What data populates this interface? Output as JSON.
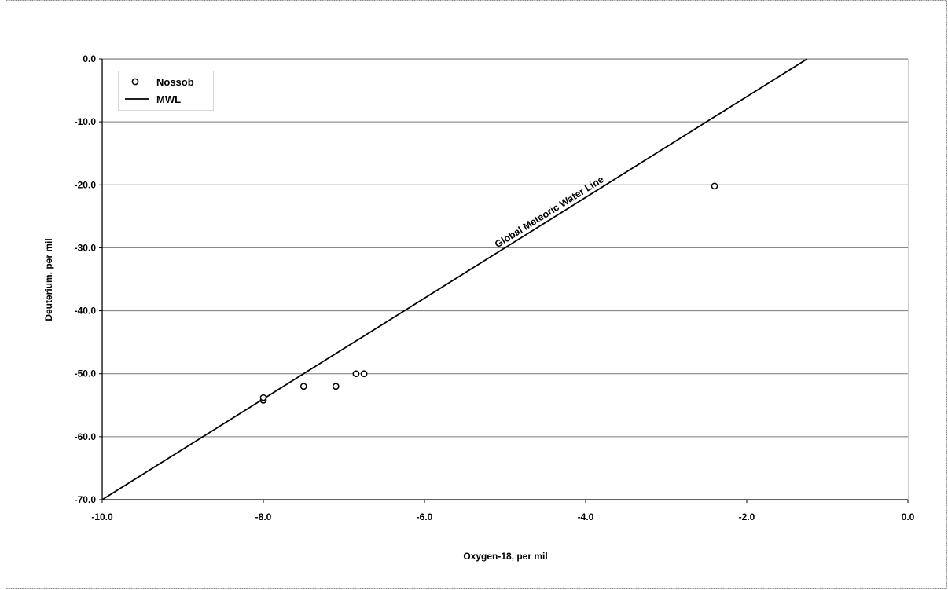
{
  "chart_data": {
    "type": "scatter",
    "title": "",
    "xlabel": "Oxygen-18, per mil",
    "ylabel": "Deuterium, per mil",
    "xlim": [
      -10.0,
      0.0
    ],
    "ylim": [
      -70.0,
      0.0
    ],
    "x_ticks": [
      -10.0,
      -8.0,
      -6.0,
      -4.0,
      -2.0,
      0.0
    ],
    "y_ticks": [
      0.0,
      -10.0,
      -20.0,
      -30.0,
      -40.0,
      -50.0,
      -60.0,
      -70.0
    ],
    "x_tick_labels": [
      "-10.0",
      "-8.0",
      "-6.0",
      "-4.0",
      "-2.0",
      "0.0"
    ],
    "y_tick_labels": [
      "0.0",
      "-10.0",
      "-20.0",
      "-30.0",
      "-40.0",
      "-50.0",
      "-60.0",
      "-70.0"
    ],
    "grid": "horizontal",
    "legend_position": "top-left",
    "series": [
      {
        "name": "Nossob",
        "kind": "scatter",
        "marker": "open-circle",
        "points": [
          {
            "x": -8.0,
            "y": -54.2
          },
          {
            "x": -8.0,
            "y": -53.8
          },
          {
            "x": -7.5,
            "y": -52.0
          },
          {
            "x": -7.1,
            "y": -52.0
          },
          {
            "x": -6.85,
            "y": -50.0
          },
          {
            "x": -6.75,
            "y": -50.0
          },
          {
            "x": -2.4,
            "y": -20.2
          }
        ]
      },
      {
        "name": "MWL",
        "kind": "line",
        "slope": 8,
        "intercept": 10,
        "points": [
          {
            "x": -10.0,
            "y": -70.0
          },
          {
            "x": -1.25,
            "y": 0.0
          }
        ]
      }
    ],
    "annotations": [
      {
        "text": "Global Meteoric Water Line"
      }
    ]
  }
}
